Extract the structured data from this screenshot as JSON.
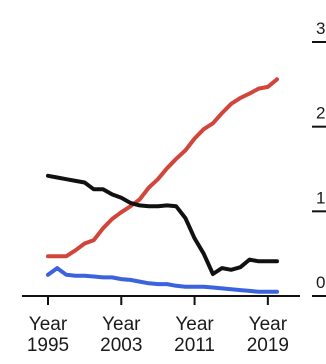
{
  "chart_data": {
    "type": "line",
    "title": "",
    "xlabel": "",
    "ylabel": "",
    "x_ticks": [
      {
        "year": 1995,
        "line1": "Year",
        "line2": "1995"
      },
      {
        "year": 2003,
        "line1": "Year",
        "line2": "2003"
      },
      {
        "year": 2011,
        "line1": "Year",
        "line2": "2011"
      },
      {
        "year": 2019,
        "line1": "Year",
        "line2": "2019"
      }
    ],
    "y_ticks": [
      {
        "value": 0,
        "label": "0"
      },
      {
        "value": 1,
        "label": "1"
      },
      {
        "value": 2,
        "label": "2"
      },
      {
        "value": 3,
        "label": "3"
      }
    ],
    "xlim": [
      1995,
      2020
    ],
    "ylim": [
      0,
      3
    ],
    "y_axis_side": "right",
    "grid": false,
    "series": [
      {
        "color": "#d1453b",
        "x": [
          1995,
          1996,
          1997,
          1998,
          1999,
          2000,
          2001,
          2002,
          2003,
          2004,
          2005,
          2006,
          2007,
          2008,
          2009,
          2010,
          2011,
          2012,
          2013,
          2014,
          2015,
          2016,
          2017,
          2018,
          2019,
          2020
        ],
        "y": [
          0.47,
          0.47,
          0.47,
          0.54,
          0.62,
          0.66,
          0.8,
          0.91,
          0.99,
          1.06,
          1.14,
          1.28,
          1.38,
          1.51,
          1.62,
          1.72,
          1.86,
          1.97,
          2.04,
          2.16,
          2.27,
          2.34,
          2.39,
          2.45,
          2.47,
          2.56
        ]
      },
      {
        "color": "#111111",
        "x": [
          1995,
          1996,
          1997,
          1998,
          1999,
          2000,
          2001,
          2002,
          2003,
          2004,
          2005,
          2006,
          2007,
          2008,
          2009,
          2010,
          2011,
          2012,
          2013,
          2014,
          2015,
          2016,
          2017,
          2018,
          2019,
          2020
        ],
        "y": [
          1.42,
          1.4,
          1.38,
          1.36,
          1.34,
          1.26,
          1.26,
          1.2,
          1.16,
          1.1,
          1.07,
          1.06,
          1.06,
          1.07,
          1.06,
          0.92,
          0.68,
          0.5,
          0.26,
          0.33,
          0.31,
          0.34,
          0.43,
          0.41,
          0.41,
          0.41
        ]
      },
      {
        "color": "#3b63de",
        "x": [
          1995,
          1996,
          1997,
          1998,
          1999,
          2000,
          2001,
          2002,
          2003,
          2004,
          2005,
          2006,
          2007,
          2008,
          2009,
          2010,
          2011,
          2012,
          2013,
          2014,
          2015,
          2016,
          2017,
          2018,
          2019,
          2020
        ],
        "y": [
          0.25,
          0.33,
          0.25,
          0.24,
          0.24,
          0.23,
          0.22,
          0.22,
          0.2,
          0.19,
          0.17,
          0.15,
          0.14,
          0.14,
          0.12,
          0.11,
          0.11,
          0.11,
          0.1,
          0.09,
          0.08,
          0.07,
          0.06,
          0.05,
          0.05,
          0.05
        ]
      }
    ]
  }
}
